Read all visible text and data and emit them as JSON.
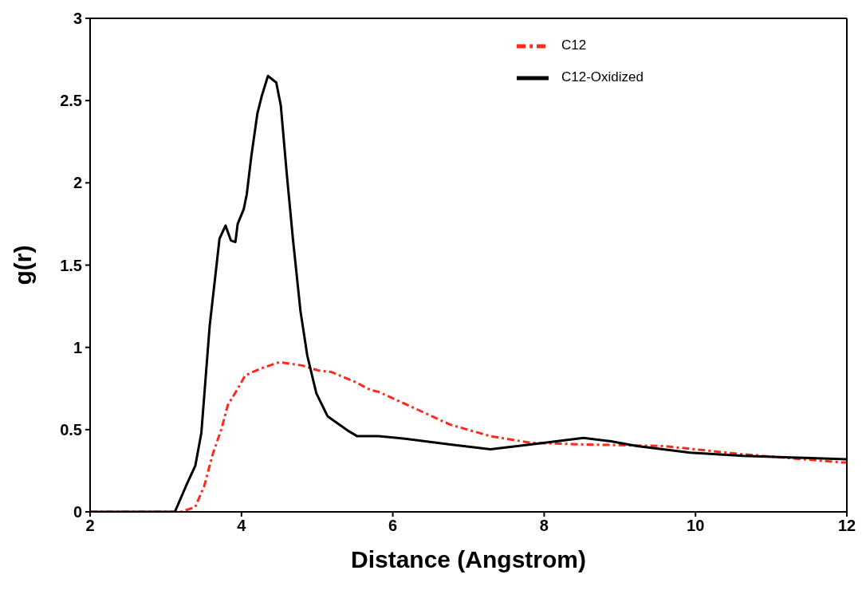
{
  "chart_data": {
    "type": "line",
    "xlabel": "Distance (Angstrom)",
    "ylabel": "g(r)",
    "xlim": [
      2,
      12
    ],
    "xticks": [
      2,
      4,
      6,
      8,
      10,
      12
    ],
    "ylim": [
      0,
      3
    ],
    "yticks": [
      0,
      0.5,
      1,
      1.5,
      2,
      2.5,
      3
    ],
    "grid": false,
    "legend": "top right",
    "marker": "none",
    "series": [
      {
        "name": "C12",
        "color": "#ff2a1a",
        "line_style": "dashed",
        "x": [
          2,
          3.2,
          3.39,
          3.51,
          3.62,
          3.74,
          3.82,
          3.94,
          4.05,
          4.25,
          4.5,
          4.8,
          5.01,
          5.19,
          5.5,
          5.71,
          5.81,
          6.24,
          6.76,
          7.29,
          7.82,
          8.52,
          9.58,
          10.63,
          11.95,
          12
        ],
        "values": [
          0,
          0,
          0.03,
          0.16,
          0.35,
          0.51,
          0.65,
          0.74,
          0.83,
          0.87,
          0.91,
          0.89,
          0.86,
          0.85,
          0.79,
          0.74,
          0.73,
          0.64,
          0.53,
          0.46,
          0.42,
          0.41,
          0.4,
          0.35,
          0.3,
          0.3
        ]
      },
      {
        "name": "C12-Oxidized",
        "color": "#000000",
        "line_style": "solid",
        "x": [
          2,
          3.12,
          3.27,
          3.39,
          3.47,
          3.58,
          3.71,
          3.79,
          3.86,
          3.92,
          3.95,
          4.03,
          4.07,
          4.13,
          4.21,
          4.27,
          4.35,
          4.46,
          4.52,
          4.6,
          4.68,
          4.78,
          4.87,
          4.99,
          5.14,
          5.42,
          5.53,
          5.81,
          6.06,
          6.76,
          7.29,
          7.82,
          8.52,
          8.87,
          9.23,
          9.93,
          10.63,
          11.34,
          11.99
        ],
        "values": [
          0,
          0,
          0.16,
          0.28,
          0.48,
          1.13,
          1.66,
          1.74,
          1.65,
          1.64,
          1.75,
          1.84,
          1.93,
          2.16,
          2.42,
          2.53,
          2.65,
          2.61,
          2.47,
          2.05,
          1.66,
          1.22,
          0.95,
          0.72,
          0.58,
          0.49,
          0.46,
          0.46,
          0.45,
          0.41,
          0.38,
          0.41,
          0.45,
          0.43,
          0.4,
          0.36,
          0.34,
          0.33,
          0.32
        ]
      }
    ]
  }
}
